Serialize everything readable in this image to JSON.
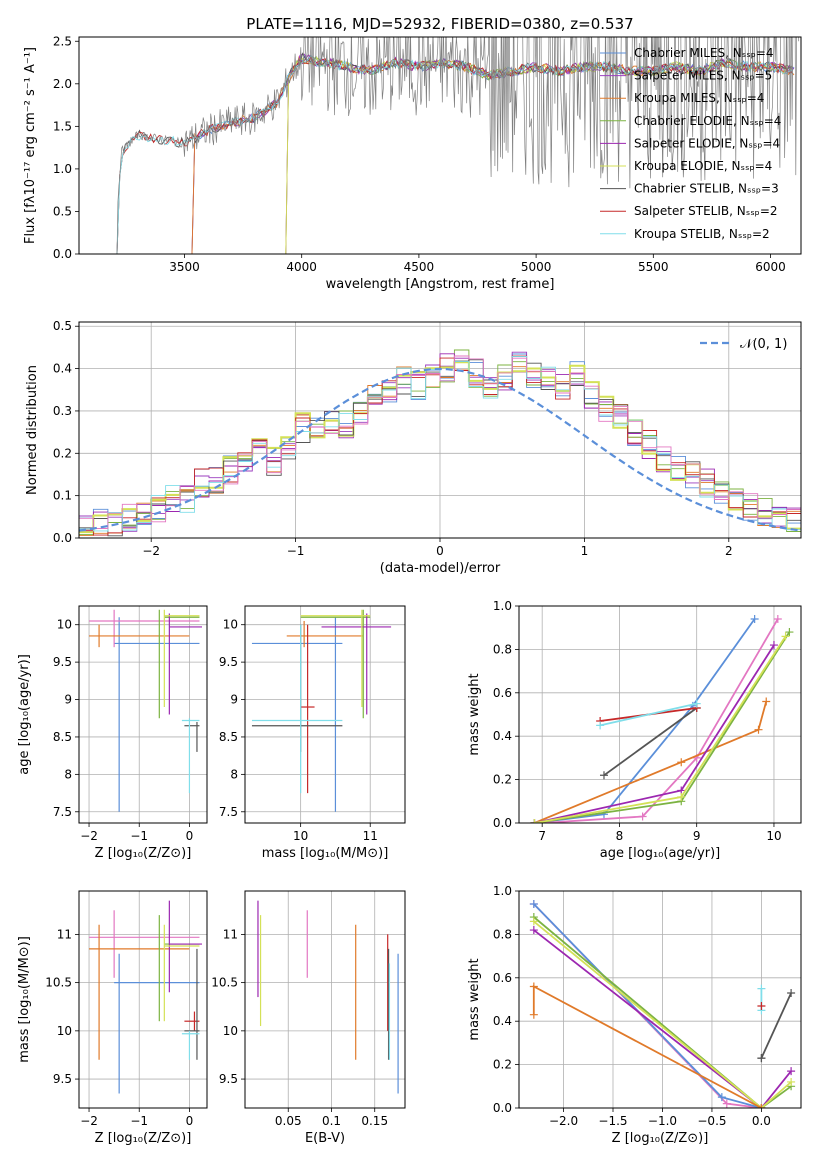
{
  "figure": {
    "title": "PLATE=1116, MJD=52932, FIBERID=0380, z=0.537"
  },
  "colors": {
    "chabrier_miles": "#5b8fd9",
    "salpeter_miles": "#9b3fbf",
    "kroupa_miles": "#e07a2a",
    "chabrier_elodie": "#7cb342",
    "salpeter_elodie": "#9c27b0",
    "kroupa_elodie": "#d4e157",
    "chabrier_stelib": "#555555",
    "salpeter_stelib": "#c62828",
    "kroupa_stelib": "#80deea",
    "pink": "#e377c2",
    "gaussian": "#5b8fd9",
    "spectrum": "#808080"
  },
  "chart_data": [
    {
      "id": "spectrum",
      "type": "line",
      "title": "PLATE=1116, MJD=52932, FIBERID=0380, z=0.537",
      "xlabel": "wavelength [Angstrom, rest frame]",
      "ylabel": "Flux [fλ10⁻¹⁷ erg cm⁻² s⁻¹ A⁻¹]",
      "xlim": [
        3050,
        6130
      ],
      "ylim": [
        0,
        2.55
      ],
      "xticks": [
        3500,
        4000,
        4500,
        5000,
        5500,
        6000
      ],
      "yticks": [
        0.0,
        0.5,
        1.0,
        1.5,
        2.0,
        2.5
      ],
      "legend_position": "top-right",
      "legend": [
        {
          "label": "Chabrier MILES, N_SSP=4",
          "color_key": "chabrier_miles"
        },
        {
          "label": "Salpeter MILES, N_SSP=5",
          "color_key": "salpeter_miles"
        },
        {
          "label": "Kroupa MILES, N_SSP=4",
          "color_key": "kroupa_miles"
        },
        {
          "label": "Chabrier ELODIE, N_SSP=4",
          "color_key": "chabrier_elodie"
        },
        {
          "label": "Salpeter ELODIE, N_SSP=4",
          "color_key": "salpeter_elodie"
        },
        {
          "label": "Kroupa ELODIE, N_SSP=4",
          "color_key": "kroupa_elodie"
        },
        {
          "label": "Chabrier STELIB, N_SSP=3",
          "color_key": "chabrier_stelib"
        },
        {
          "label": "Salpeter STELIB, N_SSP=2",
          "color_key": "salpeter_stelib"
        },
        {
          "label": "Kroupa STELIB, N_SSP=2",
          "color_key": "kroupa_stelib"
        }
      ],
      "model_curve": {
        "x": [
          3200,
          3230,
          3300,
          3400,
          3500,
          3600,
          3700,
          3800,
          3900,
          3950,
          4000,
          4100,
          4200,
          4300,
          4400,
          4500,
          4600,
          4700,
          4800,
          4900,
          5000,
          5100,
          5200,
          5300,
          5400,
          5500,
          5600,
          5700,
          5800,
          5900,
          6000,
          6100
        ],
        "y": [
          0.0,
          1.2,
          1.4,
          1.35,
          1.3,
          1.45,
          1.55,
          1.6,
          1.8,
          2.1,
          2.3,
          2.25,
          2.2,
          2.15,
          2.25,
          2.2,
          2.25,
          2.2,
          2.1,
          2.15,
          2.2,
          2.15,
          2.2,
          2.2,
          2.15,
          2.15,
          2.2,
          2.15,
          2.25,
          2.2,
          2.2,
          2.15
        ]
      }
    },
    {
      "id": "residuals",
      "type": "line",
      "xlabel": "(data-model)/error",
      "ylabel": "Normed distribution",
      "xlim": [
        -2.5,
        2.5
      ],
      "ylim": [
        0,
        0.51
      ],
      "xticks": [
        -2,
        -1,
        0,
        1,
        2
      ],
      "yticks": [
        0.0,
        0.1,
        0.2,
        0.3,
        0.4,
        0.5
      ],
      "legend": [
        {
          "label": "𝒩(0, 1)",
          "color_key": "gaussian"
        }
      ],
      "legend_position": "top-right",
      "hist_bins": {
        "start": -2.5,
        "width": 0.1
      },
      "hist_base": [
        0.03,
        0.04,
        0.035,
        0.045,
        0.06,
        0.07,
        0.09,
        0.09,
        0.13,
        0.14,
        0.16,
        0.17,
        0.21,
        0.18,
        0.22,
        0.26,
        0.25,
        0.28,
        0.27,
        0.3,
        0.34,
        0.35,
        0.37,
        0.36,
        0.38,
        0.4,
        0.41,
        0.39,
        0.36,
        0.38,
        0.41,
        0.39,
        0.37,
        0.36,
        0.39,
        0.34,
        0.31,
        0.29,
        0.25,
        0.22,
        0.19,
        0.17,
        0.15,
        0.13,
        0.11,
        0.09,
        0.07,
        0.06,
        0.05,
        0.04
      ]
    },
    {
      "id": "age_vs_Z",
      "type": "scatter",
      "xlabel": "Z [log₁₀(Z/Z⊙)]",
      "ylabel": "age  [log₁₀(age/yr)]",
      "xlim": [
        -2.2,
        0.35
      ],
      "ylim": [
        7.35,
        10.25
      ],
      "xticks": [
        -2,
        -1,
        0
      ],
      "yticks": [
        7.5,
        8.0,
        8.5,
        9.0,
        9.5,
        10.0
      ]
    },
    {
      "id": "age_vs_mass",
      "type": "scatter",
      "xlabel": "mass [log₁₀(M/M⊙)]",
      "xlim": [
        9.2,
        11.5
      ],
      "ylim": [
        7.35,
        10.25
      ],
      "xticks": [
        10,
        11
      ],
      "yticks": [
        7.5,
        8.0,
        8.5,
        9.0,
        9.5,
        10.0
      ]
    },
    {
      "id": "weight_vs_age",
      "type": "line",
      "xlabel": "age  [log₁₀(age/yr)]",
      "ylabel": "mass weight",
      "xlim": [
        6.7,
        10.35
      ],
      "ylim": [
        0,
        1.0
      ],
      "xticks": [
        7,
        8,
        9,
        10
      ],
      "yticks": [
        0.0,
        0.2,
        0.4,
        0.6,
        0.8,
        1.0
      ],
      "series": [
        {
          "color_key": "chabrier_miles",
          "x": [
            6.9,
            7.8,
            8.95,
            9.75
          ],
          "y": [
            0.0,
            0.04,
            0.54,
            0.94
          ]
        },
        {
          "color_key": "pink",
          "x": [
            7.0,
            8.3,
            9.0,
            10.05
          ],
          "y": [
            0.0,
            0.03,
            0.3,
            0.94
          ]
        },
        {
          "color_key": "kroupa_miles",
          "x": [
            6.9,
            8.8,
            9.8,
            9.9
          ],
          "y": [
            0.0,
            0.28,
            0.43,
            0.56
          ]
        },
        {
          "color_key": "chabrier_elodie",
          "x": [
            6.9,
            8.8,
            10.2
          ],
          "y": [
            0.0,
            0.1,
            0.88
          ]
        },
        {
          "color_key": "salpeter_elodie",
          "x": [
            6.9,
            8.8,
            10.0
          ],
          "y": [
            0.0,
            0.15,
            0.82
          ]
        },
        {
          "color_key": "kroupa_elodie",
          "x": [
            6.9,
            8.8,
            10.15
          ],
          "y": [
            0.0,
            0.12,
            0.86
          ]
        },
        {
          "color_key": "chabrier_stelib",
          "x": [
            7.8,
            9.0
          ],
          "y": [
            0.22,
            0.53
          ]
        },
        {
          "color_key": "salpeter_stelib",
          "x": [
            7.75,
            9.0
          ],
          "y": [
            0.47,
            0.53
          ]
        },
        {
          "color_key": "kroupa_stelib",
          "x": [
            7.75,
            9.0
          ],
          "y": [
            0.45,
            0.55
          ]
        }
      ]
    },
    {
      "id": "mass_vs_Z",
      "type": "scatter",
      "xlabel": "Z [log₁₀(Z/Z⊙)]",
      "ylabel": "mass [log₁₀(M/M⊙)]",
      "xlim": [
        -2.2,
        0.35
      ],
      "ylim": [
        9.2,
        11.45
      ],
      "xticks": [
        -2,
        -1,
        0
      ],
      "yticks": [
        9.5,
        10.0,
        10.5,
        11.0
      ]
    },
    {
      "id": "mass_vs_ebv",
      "type": "scatter",
      "xlabel": "E(B-V)",
      "xlim": [
        0.0,
        0.185
      ],
      "ylim": [
        9.2,
        11.45
      ],
      "xticks": [
        0.05,
        0.1,
        0.15
      ],
      "yticks": [
        9.5,
        10.0,
        10.5,
        11.0
      ]
    },
    {
      "id": "weight_vs_Z",
      "type": "line",
      "xlabel": "Z [log₁₀(Z/Z⊙)]",
      "ylabel": "mass weight",
      "xlim": [
        -2.45,
        0.4
      ],
      "ylim": [
        0,
        1.0
      ],
      "xticks": [
        -2.0,
        -1.5,
        -1.0,
        -0.5,
        0.0
      ],
      "yticks": [
        0.0,
        0.2,
        0.4,
        0.6,
        0.8,
        1.0
      ],
      "series": [
        {
          "color_key": "pink",
          "x": [
            -2.3,
            -0.35,
            0.0
          ],
          "y": [
            0.94,
            0.02,
            0.0
          ]
        },
        {
          "color_key": "chabrier_miles",
          "x": [
            -2.3,
            -0.4,
            0.0
          ],
          "y": [
            0.94,
            0.05,
            0.0
          ]
        },
        {
          "color_key": "chabrier_elodie",
          "x": [
            -2.3,
            0.0,
            0.3
          ],
          "y": [
            0.88,
            0.0,
            0.1
          ]
        },
        {
          "color_key": "salpeter_elodie",
          "x": [
            -2.3,
            0.0,
            0.3
          ],
          "y": [
            0.82,
            0.0,
            0.17
          ]
        },
        {
          "color_key": "kroupa_elodie",
          "x": [
            -2.3,
            0.0,
            0.3
          ],
          "y": [
            0.86,
            0.0,
            0.12
          ]
        },
        {
          "color_key": "kroupa_miles",
          "x": [
            -2.3,
            -2.3,
            0.0
          ],
          "y": [
            0.43,
            0.56,
            0.0
          ]
        },
        {
          "color_key": "chabrier_stelib",
          "x": [
            0.0,
            0.0,
            0.3
          ],
          "y": [
            0.23,
            0.23,
            0.53
          ]
        },
        {
          "color_key": "kroupa_stelib",
          "x": [
            0.0,
            0.0
          ],
          "y": [
            0.45,
            0.55
          ]
        },
        {
          "color_key": "salpeter_stelib",
          "x": [
            0.0
          ],
          "y": [
            0.47
          ]
        }
      ]
    }
  ]
}
